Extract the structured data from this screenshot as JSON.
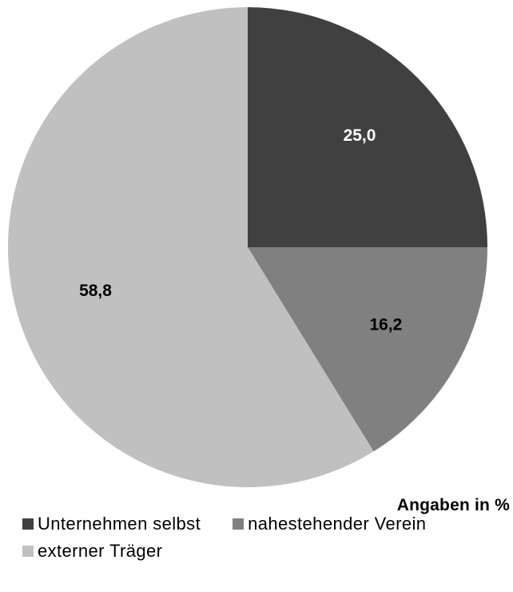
{
  "chart_data": {
    "type": "pie",
    "categories": [
      "Unternehmen selbst",
      "nahestehender Verein",
      "externer Träger"
    ],
    "values": [
      25.0,
      16.2,
      58.8
    ],
    "value_labels": [
      "25,0",
      "16,2",
      "58,8"
    ],
    "colors": [
      "#404040",
      "#808080",
      "#c0c0c0"
    ],
    "start_angle_deg": 0,
    "direction": "clockwise",
    "unit_note": "Angaben in %",
    "legend_position": "bottom"
  }
}
